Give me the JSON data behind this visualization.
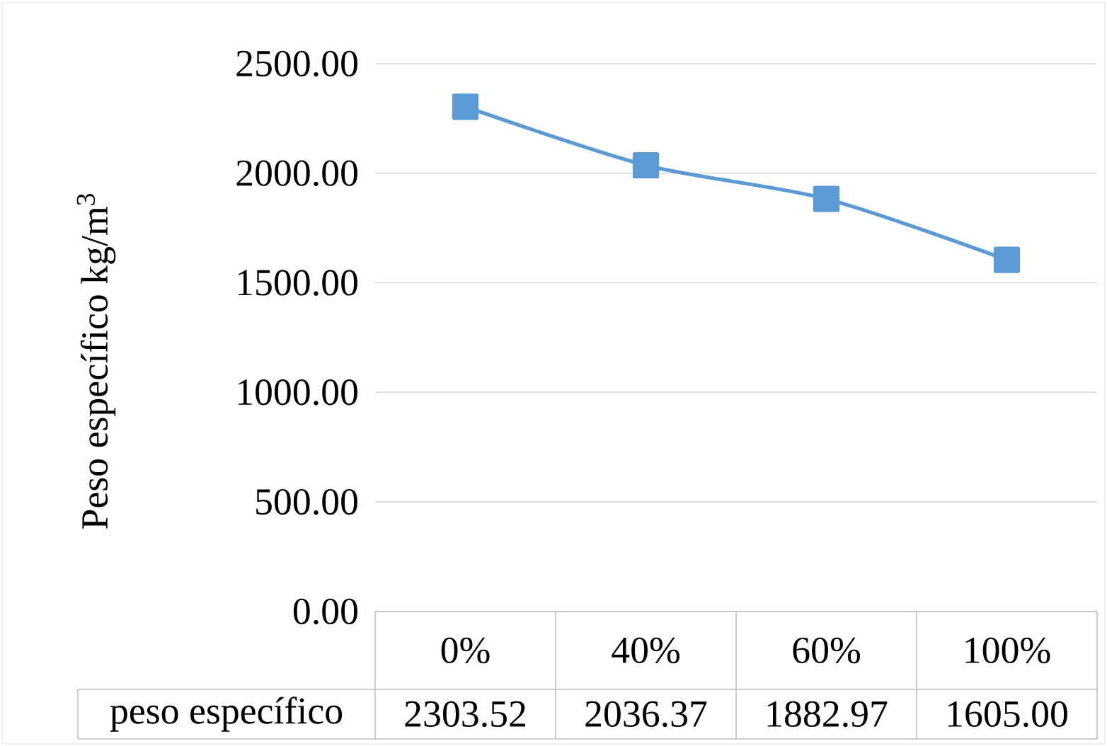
{
  "chart_data": {
    "type": "line",
    "ylabel": "Peso específico kg/m$^{3}$",
    "categories": [
      "0%",
      "40%",
      "60%",
      "100%"
    ],
    "series": [
      {
        "name": "peso específico",
        "color": "#5b9bd5",
        "values": [
          2303.52,
          2036.37,
          1882.97,
          1605.0
        ],
        "value_labels": [
          "2303.52",
          "2036.37",
          "1882.97",
          "1605.00"
        ]
      }
    ],
    "ylim": [
      0,
      2500
    ],
    "yticks": [
      {
        "value": 0,
        "label": "0.00"
      },
      {
        "value": 500,
        "label": "500.00"
      },
      {
        "value": 1000,
        "label": "1000.00"
      },
      {
        "value": 1500,
        "label": "1500.00"
      },
      {
        "value": 2000,
        "label": "2000.00"
      },
      {
        "value": 2500,
        "label": "2500.00"
      }
    ],
    "grid": "y",
    "marker": "square"
  }
}
